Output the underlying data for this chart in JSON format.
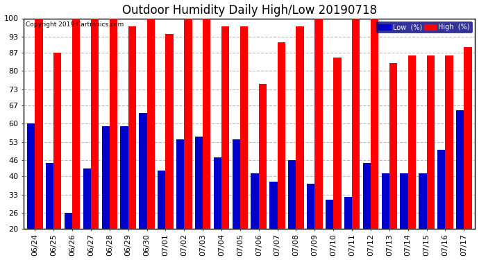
{
  "title": "Outdoor Humidity Daily High/Low 20190718",
  "copyright": "Copyright 2019 Cartronics.com",
  "dates": [
    "06/24",
    "06/25",
    "06/26",
    "06/27",
    "06/28",
    "06/29",
    "06/30",
    "07/01",
    "07/02",
    "07/03",
    "07/04",
    "07/05",
    "07/06",
    "07/07",
    "07/08",
    "07/09",
    "07/10",
    "07/11",
    "07/12",
    "07/13",
    "07/14",
    "07/15",
    "07/16",
    "07/17"
  ],
  "high": [
    100,
    87,
    100,
    100,
    100,
    97,
    100,
    94,
    100,
    100,
    97,
    97,
    75,
    91,
    97,
    100,
    85,
    100,
    100,
    83,
    86,
    86,
    86,
    89
  ],
  "low": [
    60,
    45,
    26,
    43,
    59,
    59,
    64,
    42,
    54,
    55,
    47,
    54,
    41,
    38,
    46,
    37,
    31,
    32,
    45,
    41,
    41,
    41,
    50,
    65
  ],
  "high_color": "#ff0000",
  "low_color": "#0000cc",
  "bg_color": "#ffffff",
  "grid_color": "#bbbbbb",
  "ymin": 20,
  "ymax": 100,
  "yticks": [
    20,
    26,
    33,
    40,
    46,
    53,
    60,
    67,
    73,
    80,
    87,
    93,
    100
  ],
  "bar_width": 0.42,
  "title_fontsize": 12,
  "tick_fontsize": 8,
  "label_fontsize": 7,
  "legend_labels": [
    "Low  (%)",
    "High  (%)"
  ]
}
